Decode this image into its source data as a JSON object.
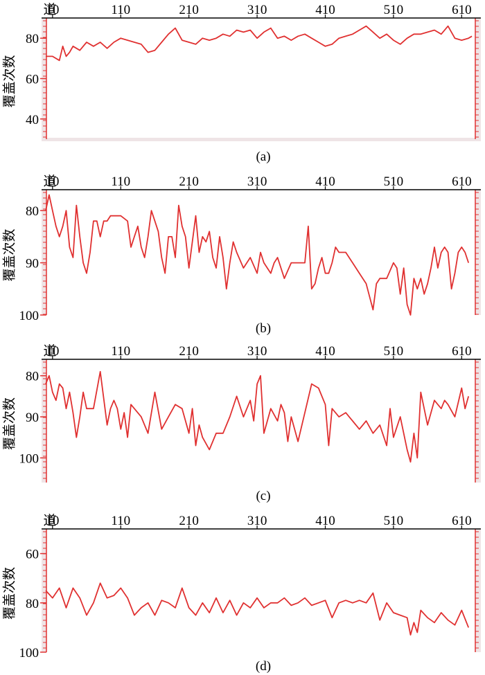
{
  "figure": {
    "trace_label": "道",
    "x_ticks": [
      "10",
      "110",
      "210",
      "310",
      "410",
      "510",
      "610"
    ],
    "x_tick_values": [
      10,
      110,
      210,
      310,
      410,
      510,
      610
    ],
    "ylabel": "覆盖次数",
    "colors": {
      "line": "#e03030",
      "frame_accent": "#e03030",
      "axis": "#000000",
      "frame_bg": "#efe4e6"
    }
  },
  "chart_data": [
    {
      "type": "line",
      "caption": "(a)",
      "xlim": [
        0,
        630
      ],
      "ylim": [
        90,
        30
      ],
      "y_inverted": true,
      "y_ticks": [
        40,
        60,
        80
      ],
      "x_ticks": [
        10,
        110,
        210,
        310,
        410,
        510,
        610
      ],
      "series": [
        {
          "x": [
            0,
            10,
            20,
            25,
            30,
            35,
            40,
            50,
            60,
            70,
            80,
            90,
            100,
            110,
            120,
            130,
            140,
            150,
            160,
            170,
            180,
            190,
            200,
            210,
            220,
            230,
            240,
            250,
            260,
            270,
            280,
            290,
            300,
            310,
            320,
            330,
            340,
            350,
            360,
            370,
            380,
            390,
            400,
            410,
            420,
            430,
            440,
            450,
            460,
            470,
            480,
            490,
            500,
            510,
            520,
            530,
            540,
            550,
            560,
            570,
            580,
            590,
            600,
            610,
            620,
            625
          ],
          "y": [
            71,
            71,
            69,
            76,
            71,
            73,
            76,
            74,
            78,
            76,
            78,
            75,
            78,
            80,
            79,
            78,
            77,
            73,
            74,
            78,
            82,
            85,
            79,
            78,
            77,
            80,
            79,
            80,
            82,
            81,
            84,
            83,
            84,
            80,
            83,
            85,
            80,
            81,
            79,
            81,
            82,
            80,
            78,
            76,
            77,
            80,
            81,
            82,
            84,
            86,
            83,
            80,
            82,
            79,
            77,
            80,
            82,
            82,
            83,
            84,
            82,
            86,
            80,
            79,
            80,
            81
          ]
        }
      ]
    },
    {
      "type": "line",
      "caption": "(b)",
      "xlim": [
        0,
        630
      ],
      "ylim": [
        76,
        100
      ],
      "y_inverted": true,
      "y_ticks": [
        80,
        90,
        100
      ],
      "x_ticks": [
        10,
        110,
        210,
        310,
        410,
        510,
        610
      ],
      "series": [
        {
          "x": [
            0,
            5,
            10,
            15,
            20,
            25,
            30,
            35,
            40,
            45,
            50,
            55,
            60,
            65,
            70,
            75,
            80,
            85,
            90,
            95,
            100,
            110,
            120,
            125,
            130,
            135,
            140,
            145,
            150,
            155,
            160,
            165,
            170,
            175,
            180,
            185,
            190,
            195,
            200,
            205,
            210,
            215,
            220,
            225,
            230,
            235,
            240,
            245,
            250,
            255,
            260,
            265,
            270,
            275,
            280,
            290,
            300,
            310,
            315,
            320,
            325,
            330,
            335,
            340,
            345,
            350,
            360,
            370,
            380,
            385,
            390,
            395,
            400,
            405,
            410,
            415,
            420,
            425,
            430,
            440,
            450,
            460,
            470,
            480,
            485,
            490,
            500,
            510,
            515,
            520,
            525,
            530,
            535,
            540,
            545,
            550,
            555,
            560,
            565,
            570,
            575,
            580,
            585,
            590,
            595,
            600,
            605,
            610,
            615,
            620
          ],
          "y": [
            80,
            77,
            80,
            83,
            85,
            83,
            80,
            87,
            89,
            79,
            85,
            90,
            92,
            88,
            82,
            82,
            85,
            82,
            82,
            81,
            81,
            81,
            82,
            87,
            85,
            83,
            87,
            89,
            85,
            80,
            82,
            84,
            89,
            92,
            85,
            85,
            89,
            79,
            83,
            85,
            91,
            86,
            81,
            88,
            85,
            86,
            84,
            89,
            91,
            85,
            89,
            95,
            90,
            86,
            88,
            91,
            89,
            92,
            88,
            90,
            91,
            92,
            90,
            89,
            91,
            93,
            90,
            90,
            90,
            83,
            95,
            94,
            91,
            89,
            92,
            92,
            90,
            87,
            88,
            88,
            90,
            92,
            94,
            99,
            94,
            93,
            93,
            90,
            91,
            96,
            91,
            98,
            100,
            93,
            95,
            93,
            96,
            94,
            91,
            87,
            91,
            88,
            87,
            88,
            95,
            92,
            88,
            87,
            88,
            90
          ]
        }
      ]
    },
    {
      "type": "line",
      "caption": "(c)",
      "xlim": [
        0,
        630
      ],
      "ylim": [
        76,
        106
      ],
      "y_inverted": true,
      "y_ticks": [
        80,
        90,
        100
      ],
      "x_ticks": [
        10,
        110,
        210,
        310,
        410,
        510,
        610
      ],
      "series": [
        {
          "x": [
            0,
            5,
            10,
            15,
            20,
            25,
            30,
            35,
            40,
            45,
            50,
            55,
            60,
            70,
            80,
            90,
            95,
            100,
            105,
            110,
            115,
            120,
            125,
            130,
            140,
            150,
            160,
            170,
            180,
            190,
            200,
            210,
            215,
            220,
            225,
            230,
            240,
            250,
            260,
            270,
            280,
            290,
            300,
            305,
            310,
            315,
            320,
            330,
            340,
            345,
            350,
            355,
            360,
            370,
            380,
            390,
            400,
            410,
            415,
            420,
            430,
            440,
            450,
            460,
            470,
            480,
            490,
            500,
            505,
            510,
            520,
            530,
            535,
            540,
            545,
            550,
            560,
            570,
            580,
            585,
            590,
            600,
            610,
            615,
            620
          ],
          "y": [
            82,
            80,
            84,
            86,
            82,
            83,
            88,
            84,
            89,
            95,
            90,
            84,
            88,
            88,
            79,
            92,
            88,
            86,
            88,
            93,
            89,
            95,
            87,
            88,
            90,
            94,
            84,
            93,
            90,
            87,
            88,
            94,
            88,
            97,
            92,
            95,
            98,
            94,
            94,
            90,
            85,
            90,
            86,
            91,
            82,
            80,
            94,
            88,
            91,
            87,
            89,
            96,
            90,
            96,
            89,
            82,
            83,
            87,
            97,
            88,
            90,
            89,
            91,
            93,
            91,
            94,
            92,
            97,
            88,
            95,
            90,
            98,
            101,
            94,
            100,
            84,
            92,
            86,
            88,
            86,
            87,
            90,
            83,
            88,
            85
          ]
        }
      ]
    },
    {
      "type": "line",
      "caption": "(d)",
      "xlim": [
        0,
        630
      ],
      "ylim": [
        50,
        100
      ],
      "y_inverted": true,
      "y_ticks": [
        60,
        80,
        100
      ],
      "x_ticks": [
        10,
        110,
        210,
        310,
        410,
        510,
        610
      ],
      "series": [
        {
          "x": [
            0,
            10,
            20,
            30,
            40,
            50,
            60,
            70,
            80,
            90,
            100,
            110,
            120,
            130,
            140,
            150,
            160,
            170,
            180,
            190,
            200,
            210,
            220,
            230,
            240,
            250,
            260,
            270,
            280,
            290,
            300,
            310,
            320,
            330,
            340,
            350,
            360,
            370,
            380,
            390,
            400,
            410,
            420,
            430,
            440,
            450,
            460,
            470,
            480,
            490,
            500,
            510,
            520,
            530,
            535,
            540,
            545,
            550,
            560,
            570,
            580,
            590,
            600,
            610,
            620
          ],
          "y": [
            75,
            78,
            74,
            82,
            74,
            78,
            85,
            80,
            72,
            78,
            77,
            74,
            78,
            85,
            82,
            80,
            85,
            79,
            80,
            82,
            74,
            82,
            85,
            80,
            84,
            78,
            84,
            79,
            85,
            80,
            82,
            78,
            82,
            80,
            80,
            78,
            81,
            80,
            78,
            81,
            80,
            79,
            86,
            80,
            79,
            80,
            79,
            80,
            76,
            87,
            80,
            84,
            85,
            86,
            93,
            88,
            92,
            83,
            86,
            88,
            84,
            87,
            89,
            83,
            90
          ]
        }
      ]
    }
  ]
}
